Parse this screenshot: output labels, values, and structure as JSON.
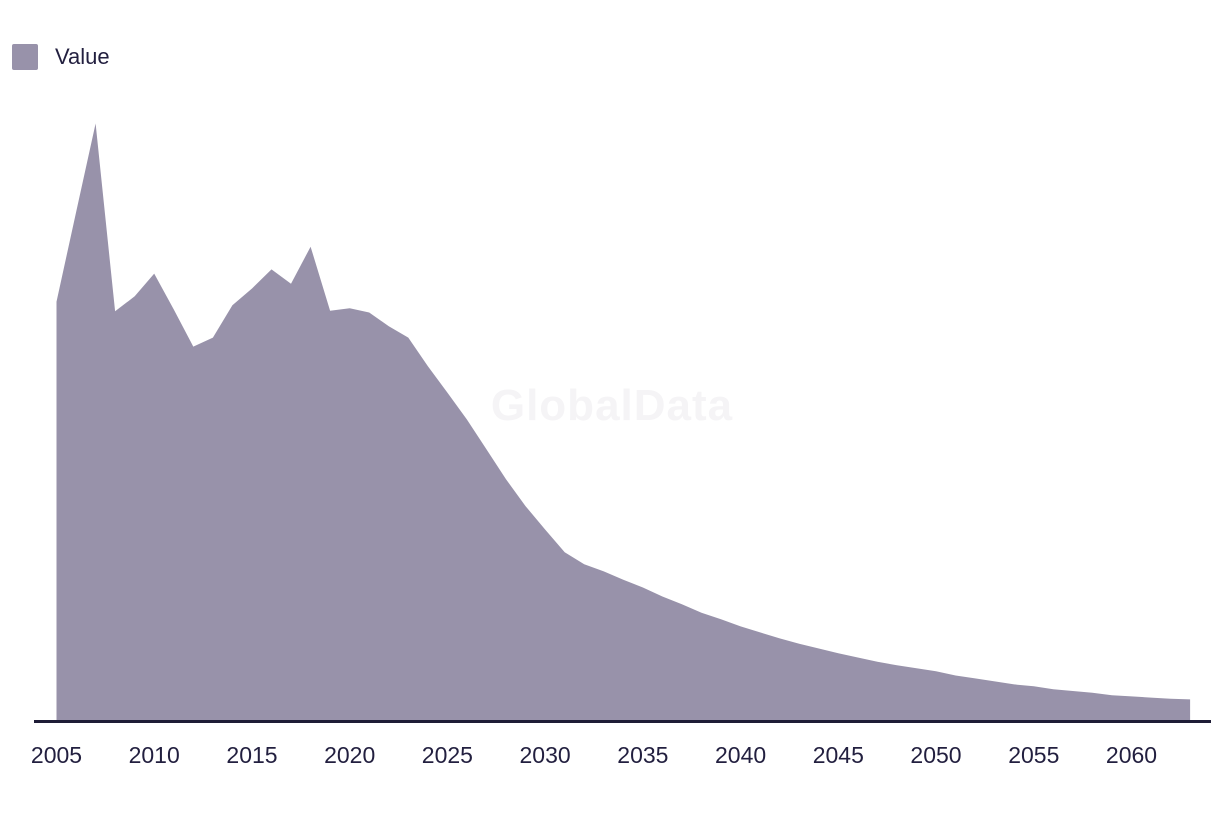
{
  "legend": {
    "items": [
      {
        "label": "Value",
        "swatch_color": "#9892aa"
      }
    ]
  },
  "watermark": {
    "text": "GlobalData"
  },
  "colors": {
    "background": "#ffffff",
    "area_fill": "#9892aa",
    "axis_line": "#1e1c36",
    "text": "#221f3f",
    "watermark": "#f5f4f6"
  },
  "chart_data": {
    "type": "area",
    "title": "",
    "xlabel": "",
    "ylabel": "",
    "legend_position": "top-left",
    "grid": false,
    "y_axis": {
      "tick_labels": [],
      "note": "no y-axis shown; values are relative units with the 2007 peak = 100"
    },
    "x_axis": {
      "tick_labels": [
        "2005",
        "2010",
        "2015",
        "2020",
        "2025",
        "2030",
        "2035",
        "2040",
        "2045",
        "2050",
        "2055",
        "2060"
      ],
      "range": [
        2005,
        2063
      ]
    },
    "x": [
      2005,
      2006,
      2007,
      2008,
      2009,
      2010,
      2011,
      2012,
      2013,
      2014,
      2015,
      2016,
      2017,
      2018,
      2019,
      2020,
      2021,
      2022,
      2023,
      2024,
      2025,
      2026,
      2027,
      2028,
      2029,
      2030,
      2031,
      2032,
      2033,
      2034,
      2035,
      2036,
      2037,
      2038,
      2039,
      2040,
      2041,
      2042,
      2043,
      2044,
      2045,
      2046,
      2047,
      2048,
      2049,
      2050,
      2051,
      2052,
      2053,
      2054,
      2055,
      2056,
      2057,
      2058,
      2059,
      2060,
      2061,
      2062,
      2063
    ],
    "series": [
      {
        "name": "Value",
        "color": "#9892aa",
        "values": [
          70.2,
          85.1,
          100.0,
          68.6,
          71.1,
          74.9,
          68.9,
          62.7,
          64.2,
          69.6,
          72.4,
          75.6,
          73.2,
          79.4,
          68.7,
          69.1,
          68.4,
          66.1,
          64.2,
          59.4,
          55.0,
          50.5,
          45.5,
          40.5,
          36.0,
          32.1,
          28.3,
          26.3,
          25.1,
          23.7,
          22.4,
          20.9,
          19.6,
          18.2,
          17.1,
          15.9,
          14.9,
          13.9,
          13.0,
          12.2,
          11.4,
          10.7,
          10.0,
          9.4,
          8.9,
          8.4,
          7.7,
          7.2,
          6.7,
          6.2,
          5.9,
          5.4,
          5.1,
          4.8,
          4.4,
          4.2,
          4.0,
          3.8,
          3.7
        ]
      }
    ]
  }
}
